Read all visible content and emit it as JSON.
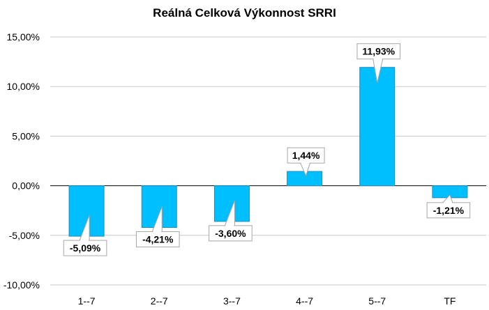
{
  "chart_data": {
    "type": "bar",
    "title": "Reálná Celková Výkonnost SRRI",
    "xlabel": "",
    "ylabel": "",
    "categories": [
      "1--7",
      "2--7",
      "3--7",
      "4--7",
      "5--7",
      "TF"
    ],
    "values": [
      -5.09,
      -4.21,
      -3.6,
      1.44,
      11.93,
      -1.21
    ],
    "data_labels": [
      "-5,09%",
      "-4,21%",
      "-3,60%",
      "1,44%",
      "11,93%",
      "-1,21%"
    ],
    "ylim": [
      -10,
      15
    ],
    "yticks": [
      15,
      10,
      5,
      0,
      -5,
      -10
    ],
    "ytick_labels": [
      "15,00%",
      "10,00%",
      "5,00%",
      "0,00%",
      "-5,00%",
      "-10,00%"
    ],
    "grid": true,
    "legend": "none",
    "colors": {
      "bar": "#00BFFF",
      "bar_edge": "#1a8cc0",
      "grid": "#c8c8c8",
      "callout_border": "#a6a6a6"
    }
  }
}
